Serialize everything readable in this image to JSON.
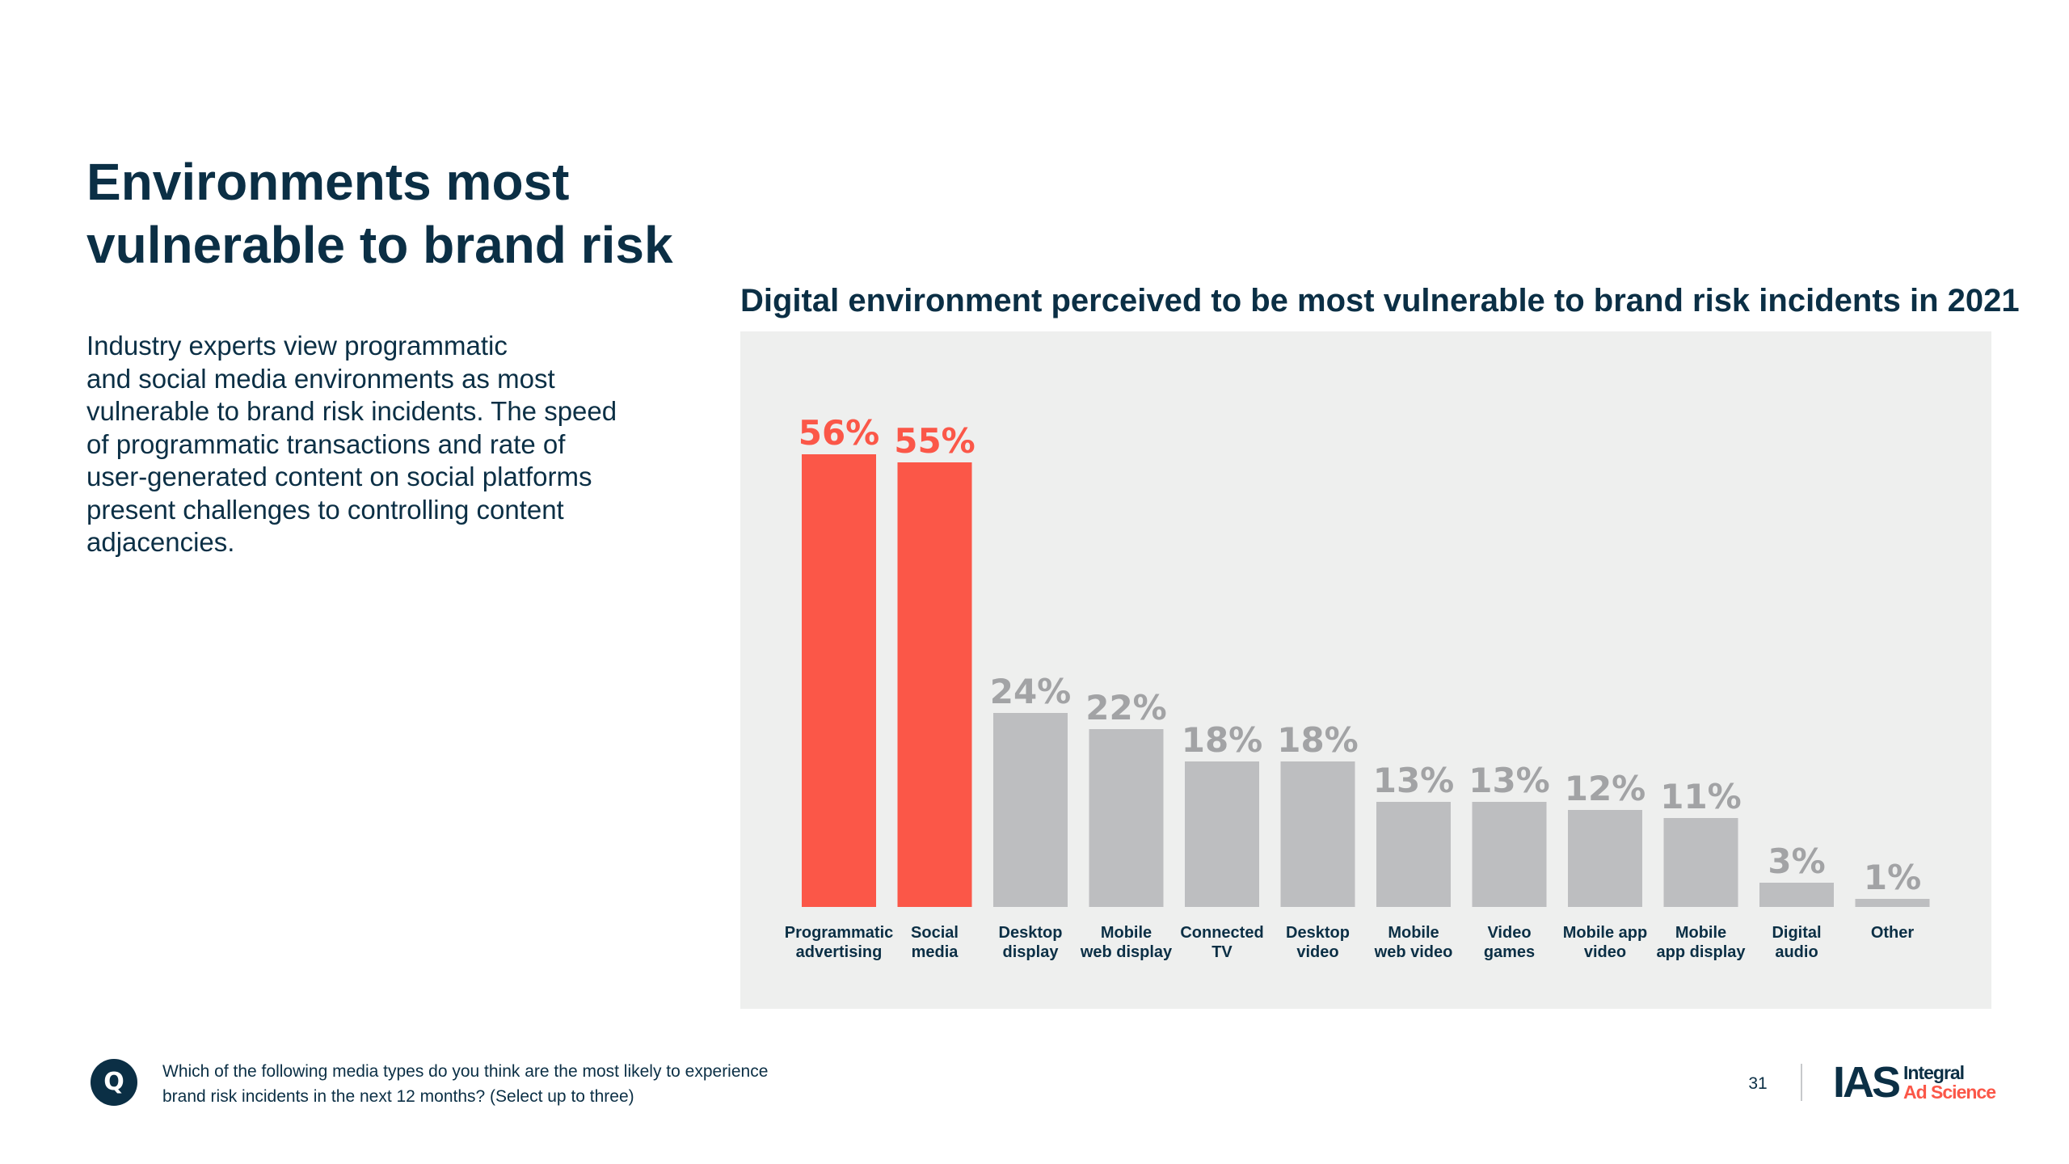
{
  "page": {
    "title_lines": [
      "Environments most",
      "vulnerable to brand risk"
    ],
    "intro_lines": [
      "Industry experts view programmatic",
      "and social media environments as most",
      "vulnerable to brand risk incidents. The speed",
      "of programmatic transactions and rate of",
      "user-generated content on social platforms",
      "present challenges to controlling content",
      "adjacencies."
    ]
  },
  "footer": {
    "q_badge": "Q",
    "question_lines": [
      "Which of the following media types do you think are the most likely to experience",
      "brand risk incidents in the next 12 months? (Select up to three)"
    ],
    "page_number": "31",
    "logo": {
      "mark": "IAS",
      "line1": "Integral",
      "line2": "Ad Science"
    }
  },
  "colors": {
    "highlight": "#fb5748",
    "neutral_bar": "#bdbec0",
    "neutral_value": "#a2a3a5",
    "panel_bg": "#eeefee",
    "text": "#0b2f45"
  },
  "chart_data": {
    "type": "bar",
    "title": "Digital environment perceived to be most vulnerable to brand risk incidents in 2021",
    "xlabel": "",
    "ylabel": "",
    "ylim": [
      0,
      60
    ],
    "grid": false,
    "legend": "none",
    "value_suffix": "%",
    "categories": [
      [
        "Programmatic",
        "advertising"
      ],
      [
        "Social",
        "media"
      ],
      [
        "Desktop",
        "display"
      ],
      [
        "Mobile",
        "web display"
      ],
      [
        "Connected",
        "TV"
      ],
      [
        "Desktop",
        "video"
      ],
      [
        "Mobile",
        "web video"
      ],
      [
        "Video",
        "games"
      ],
      [
        "Mobile app",
        "video"
      ],
      [
        "Mobile",
        "app  display"
      ],
      [
        "Digital",
        "audio"
      ],
      [
        "Other"
      ]
    ],
    "values": [
      56,
      55,
      24,
      22,
      18,
      18,
      13,
      13,
      12,
      11,
      3,
      1
    ],
    "highlighted": [
      true,
      true,
      false,
      false,
      false,
      false,
      false,
      false,
      false,
      false,
      false,
      false
    ]
  }
}
